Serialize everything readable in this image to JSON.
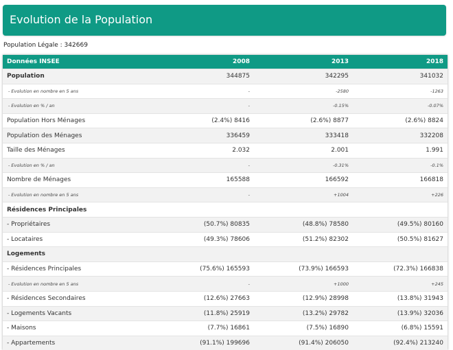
{
  "header": {
    "title": "Evolution de la Population"
  },
  "legal_population": "Population Légale : 342669",
  "table": {
    "columns": [
      "Données INSEE",
      "2008",
      "2013",
      "2018"
    ],
    "rows": [
      {
        "kind": "bold",
        "cells": [
          "Population",
          "344875",
          "342295",
          "341032"
        ]
      },
      {
        "kind": "small",
        "cells": [
          "- Evolution en nombre en 5 ans",
          "-",
          "-2580",
          "-1263"
        ]
      },
      {
        "kind": "small",
        "cells": [
          "- Evolution en % / an",
          "-",
          "-0.15%",
          "-0.07%"
        ]
      },
      {
        "kind": "normal",
        "cells": [
          "Population Hors Ménages",
          "(2.4%) 8416",
          "(2.6%) 8877",
          "(2.6%) 8824"
        ]
      },
      {
        "kind": "normal",
        "cells": [
          "Population des Ménages",
          "336459",
          "333418",
          "332208"
        ]
      },
      {
        "kind": "normal",
        "cells": [
          "Taille des Ménages",
          "2.032",
          "2.001",
          "1.991"
        ]
      },
      {
        "kind": "small",
        "cells": [
          "- Evolution en % / an",
          "-",
          "-0.31%",
          "-0.1%"
        ]
      },
      {
        "kind": "normal",
        "cells": [
          "Nombre de Ménages",
          "165588",
          "166592",
          "166818"
        ]
      },
      {
        "kind": "small",
        "cells": [
          "- Evolution en nombre en 5 ans",
          "-",
          "+1004",
          "+226"
        ]
      },
      {
        "kind": "section",
        "cells": [
          "Résidences Principales",
          "",
          "",
          ""
        ]
      },
      {
        "kind": "normal",
        "cells": [
          "- Propriétaires",
          "(50.7%) 80835",
          "(48.8%) 78580",
          "(49.5%) 80160"
        ]
      },
      {
        "kind": "normal",
        "cells": [
          "- Locataires",
          "(49.3%) 78606",
          "(51.2%) 82302",
          "(50.5%) 81627"
        ]
      },
      {
        "kind": "section",
        "cells": [
          "Logements",
          "",
          "",
          ""
        ]
      },
      {
        "kind": "normal",
        "cells": [
          "- Résidences Principales",
          "(75.6%) 165593",
          "(73.9%) 166593",
          "(72.3%) 166838"
        ]
      },
      {
        "kind": "small",
        "cells": [
          "- Evolution en nombre en 5 ans",
          "-",
          "+1000",
          "+245"
        ]
      },
      {
        "kind": "normal",
        "cells": [
          "- Résidences Secondaires",
          "(12.6%) 27663",
          "(12.9%) 28998",
          "(13.8%) 31943"
        ]
      },
      {
        "kind": "normal",
        "cells": [
          "- Logements Vacants",
          "(11.8%) 25919",
          "(13.2%) 29782",
          "(13.9%) 32036"
        ]
      },
      {
        "kind": "normal",
        "cells": [
          "- Maisons",
          "(7.7%) 16861",
          "(7.5%) 16890",
          "(6.8%) 15591"
        ]
      },
      {
        "kind": "normal",
        "cells": [
          "- Appartements",
          "(91.1%) 199696",
          "(91.4%) 206050",
          "(92.4%) 213240"
        ]
      }
    ]
  }
}
